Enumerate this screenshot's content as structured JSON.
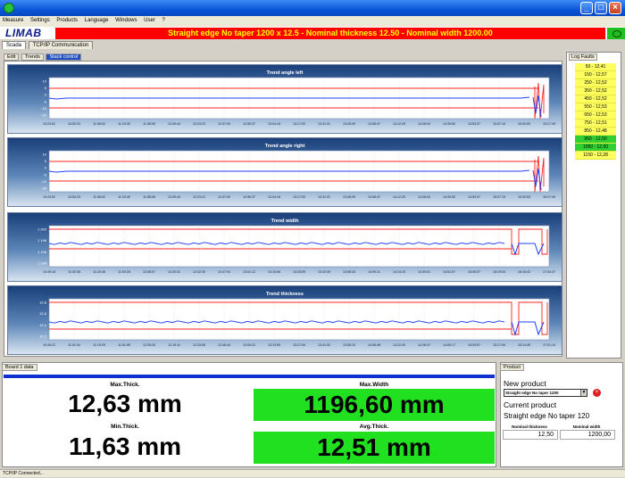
{
  "window": {
    "minimize_glyph": "_",
    "maximize_glyph": "□",
    "close_glyph": "×"
  },
  "menu": [
    "Measure",
    "Settings",
    "Products",
    "Language",
    "Windows",
    "User",
    "?"
  ],
  "header": {
    "logo": "LIMAB",
    "banner": "Straight edge No taper 1200 x 12.5 - Nominal thickness 12.50 - Nominal width 1200.00",
    "banner_color": "#ff0000",
    "banner_text_color": "#ffff00"
  },
  "tabs": [
    "Scada",
    "TCP/IP Communication"
  ],
  "subtabs": [
    "Edit",
    "Trends",
    "Stack control"
  ],
  "charts": [
    {
      "title": "Trend angle left",
      "yticks": [
        "10",
        "5",
        "0",
        "-5",
        "-10",
        "-20"
      ],
      "xticks": [
        "10:23:52",
        "10:52:23",
        "11:08:02",
        "11:19:39",
        "11:58:06",
        "12:09:44",
        "12:23:22",
        "12:37:00",
        "12:50:37",
        "13:04:16",
        "13:17:53",
        "13:31:31",
        "13:45:09",
        "13:58:47",
        "14:12:25",
        "14:26:04",
        "14:39:50",
        "14:53:37",
        "15:07:15",
        "15:20:53",
        "15:17:49"
      ]
    },
    {
      "title": "Trend angle right",
      "yticks": [
        "10",
        "5",
        "0",
        "-5",
        "-10",
        "-20"
      ],
      "xticks": [
        "10:23:52",
        "10:52:23",
        "11:08:02",
        "11:19:39",
        "11:58:06",
        "12:09:44",
        "12:23:22",
        "12:37:00",
        "12:50:37",
        "13:04:16",
        "13:17:53",
        "13:31:31",
        "13:45:09",
        "13:58:47",
        "14:12:25",
        "14:26:04",
        "14:39:50",
        "14:53:37",
        "15:07:15",
        "15:20:53",
        "15:17:49"
      ]
    },
    {
      "title": "Trend width",
      "yticks": [
        "1 200",
        "1 198",
        "1 196",
        "1 194"
      ],
      "xticks": [
        "10:49:18",
        "11:02:38",
        "11:15:46",
        "11:53:28",
        "12:08:07",
        "12:20:31",
        "12:32:39",
        "12:47:04",
        "13:01:12",
        "13:15:06",
        "13:28:55",
        "13:42:39",
        "13:56:33",
        "14:09:11",
        "14:24:15",
        "14:39:01",
        "14:51:57",
        "15:05:37",
        "15:19:34",
        "16:15:42",
        "17:04:37"
      ]
    },
    {
      "title": "Trend thickness",
      "yticks": [
        "12,8",
        "12,6",
        "12,4",
        "12,2"
      ],
      "xticks": [
        "10:49:22",
        "11:01:34",
        "11:15:29",
        "11:51:55",
        "12:05:33",
        "12:19:11",
        "12:33:06",
        "12:46:44",
        "13:00:22",
        "13:13:59",
        "13:27:54",
        "13:41:32",
        "13:55:10",
        "14:08:48",
        "14:22:40",
        "14:36:37",
        "14:50:17",
        "15:03:57",
        "15:17:54",
        "16:14:45",
        "17:01:14"
      ]
    }
  ],
  "log_panel": {
    "caption": "Log Faults",
    "items": [
      {
        "text": "50 - 12,41",
        "color": "yellow"
      },
      {
        "text": "150 - 12,57",
        "color": "yellow"
      },
      {
        "text": "250 - 12,52",
        "color": "yellow"
      },
      {
        "text": "350 - 12,52",
        "color": "yellow"
      },
      {
        "text": "450 - 12,52",
        "color": "yellow"
      },
      {
        "text": "550 - 12,53",
        "color": "yellow"
      },
      {
        "text": "650 - 12,53",
        "color": "yellow"
      },
      {
        "text": "750 - 12,51",
        "color": "yellow"
      },
      {
        "text": "850 - 12,48",
        "color": "yellow"
      },
      {
        "text": "950 - 12,50",
        "color": "green"
      },
      {
        "text": "1050 - 12,50",
        "color": "green"
      },
      {
        "text": "1150 - 12,28",
        "color": "yellow"
      }
    ]
  },
  "measurements": {
    "caption": "Board 1 data",
    "max_thick_label": "Max.Thick.",
    "max_thick": "12,63 mm",
    "min_thick_label": "Min.Thick.",
    "min_thick": "11,63 mm",
    "max_width_label": "Max.Width",
    "max_width": "1196,60 mm",
    "avg_thick_label": "Avg.Thick.",
    "avg_thick": "12,51 mm"
  },
  "product": {
    "caption": "Product",
    "new_label": "New product",
    "select_value": "Straight edge No taper 1200",
    "current_label": "Current product",
    "current_value": "Straight edge No taper 120",
    "nominal_thickness_label": "Nominal thickness",
    "nominal_width_label": "Nominal width",
    "nominal_thickness": "12,50",
    "nominal_width": "1200,00",
    "select_arrow_glyph": "▼",
    "delete_glyph": "×"
  },
  "status": "TCP/IP Connected..."
}
